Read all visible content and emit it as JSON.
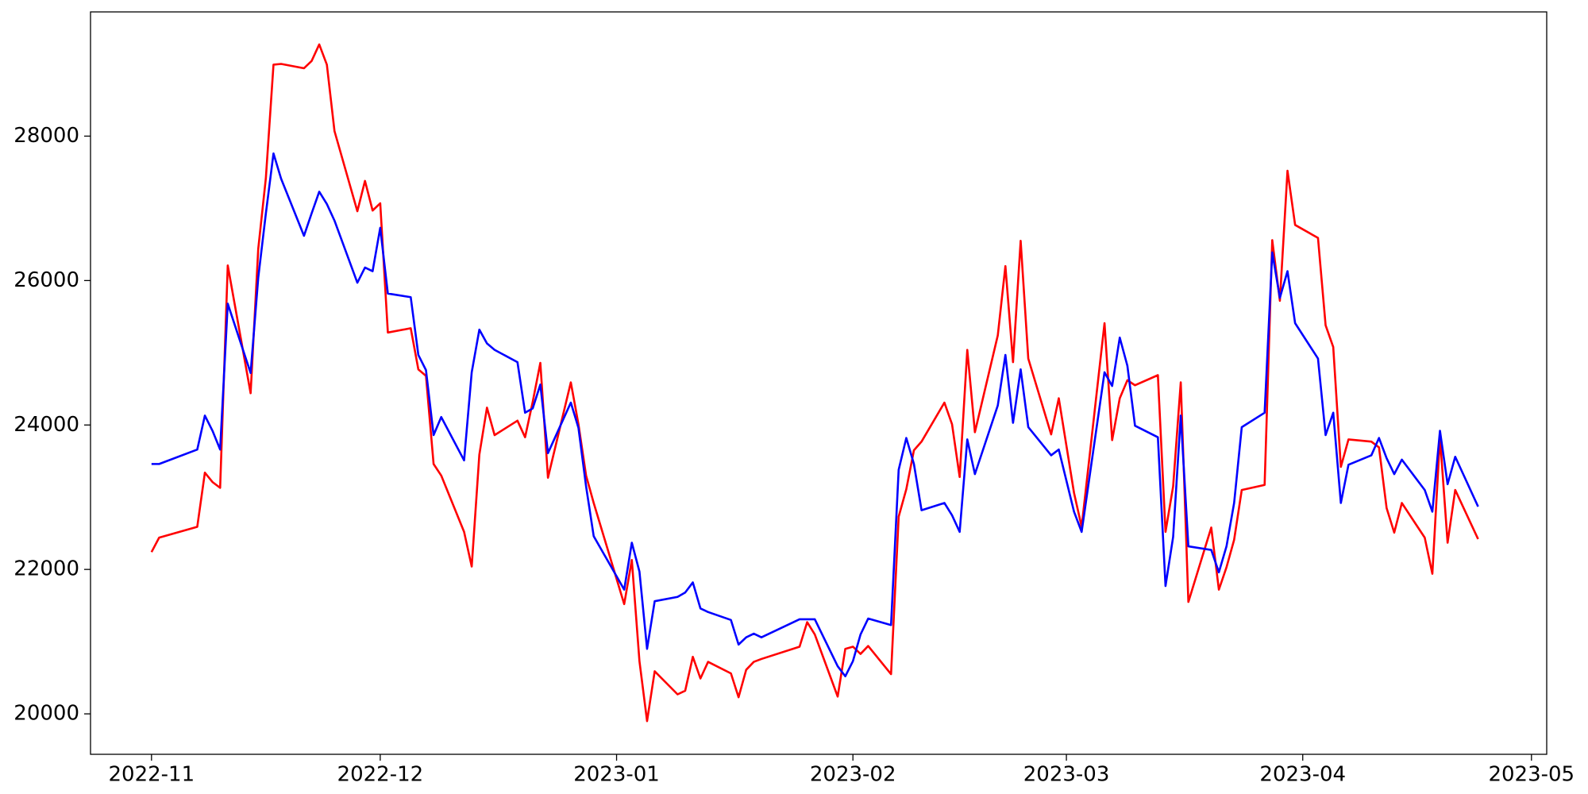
{
  "chart_data": {
    "type": "line",
    "x": [
      "2022-11-01",
      "2022-11-02",
      "2022-11-07",
      "2022-11-08",
      "2022-11-09",
      "2022-11-10",
      "2022-11-11",
      "2022-11-14",
      "2022-11-15",
      "2022-11-16",
      "2022-11-17",
      "2022-11-18",
      "2022-11-21",
      "2022-11-22",
      "2022-11-23",
      "2022-11-24",
      "2022-11-25",
      "2022-11-28",
      "2022-11-29",
      "2022-11-30",
      "2022-12-01",
      "2022-12-02",
      "2022-12-05",
      "2022-12-06",
      "2022-12-07",
      "2022-12-08",
      "2022-12-09",
      "2022-12-12",
      "2022-12-13",
      "2022-12-14",
      "2022-12-15",
      "2022-12-16",
      "2022-12-19",
      "2022-12-20",
      "2022-12-21",
      "2022-12-22",
      "2022-12-23",
      "2022-12-26",
      "2022-12-27",
      "2022-12-28",
      "2022-12-29",
      "2023-01-02",
      "2023-01-03",
      "2023-01-04",
      "2023-01-05",
      "2023-01-06",
      "2023-01-09",
      "2023-01-10",
      "2023-01-11",
      "2023-01-12",
      "2023-01-13",
      "2023-01-16",
      "2023-01-17",
      "2023-01-18",
      "2023-01-19",
      "2023-01-20",
      "2023-01-25",
      "2023-01-26",
      "2023-01-27",
      "2023-01-30",
      "2023-01-31",
      "2023-02-01",
      "2023-02-02",
      "2023-02-03",
      "2023-02-06",
      "2023-02-07",
      "2023-02-08",
      "2023-02-09",
      "2023-02-10",
      "2023-02-13",
      "2023-02-14",
      "2023-02-15",
      "2023-02-16",
      "2023-02-17",
      "2023-02-20",
      "2023-02-21",
      "2023-02-22",
      "2023-02-23",
      "2023-02-24",
      "2023-02-27",
      "2023-02-28",
      "2023-03-02",
      "2023-03-03",
      "2023-03-06",
      "2023-03-07",
      "2023-03-08",
      "2023-03-09",
      "2023-03-10",
      "2023-03-13",
      "2023-03-14",
      "2023-03-15",
      "2023-03-16",
      "2023-03-17",
      "2023-03-20",
      "2023-03-21",
      "2023-03-22",
      "2023-03-23",
      "2023-03-24",
      "2023-03-27",
      "2023-03-28",
      "2023-03-29",
      "2023-03-30",
      "2023-03-31",
      "2023-04-03",
      "2023-04-04",
      "2023-04-05",
      "2023-04-06",
      "2023-04-07",
      "2023-04-10",
      "2023-04-11",
      "2023-04-12",
      "2023-04-13",
      "2023-04-14",
      "2023-04-17",
      "2023-04-18",
      "2023-04-19",
      "2023-04-20",
      "2023-04-21",
      "2023-04-24"
    ],
    "series": [
      {
        "color": "#ff0000",
        "values": [
          22240,
          22440,
          22590,
          23340,
          23210,
          23130,
          26210,
          24440,
          26440,
          27420,
          28990,
          29000,
          28940,
          29040,
          29270,
          28990,
          28070,
          26960,
          27380,
          26970,
          27070,
          25280,
          25340,
          24770,
          24680,
          23460,
          23300,
          22520,
          22040,
          23590,
          24240,
          23860,
          24060,
          23830,
          24320,
          24860,
          23270,
          24590,
          24010,
          23300,
          22920,
          21520,
          22130,
          20730,
          19900,
          20590,
          20270,
          20320,
          20790,
          20490,
          20720,
          20560,
          20230,
          20610,
          20720,
          20760,
          20930,
          21270,
          21100,
          20240,
          20900,
          20930,
          20830,
          20940,
          20550,
          22730,
          23110,
          23650,
          23770,
          24310,
          24010,
          23280,
          25040,
          23900,
          25240,
          26200,
          24870,
          26550,
          24920,
          23870,
          24370,
          23060,
          22590,
          25410,
          23790,
          24370,
          24620,
          24550,
          24690,
          22520,
          23150,
          24590,
          21550,
          22580,
          21720,
          22030,
          22410,
          23100,
          23170,
          26560,
          25720,
          27520,
          26770,
          26590,
          25380,
          25080,
          23420,
          23800,
          23770,
          23690,
          22850,
          22510,
          22920,
          22440,
          21940,
          23830,
          22370,
          23100,
          22420
        ]
      },
      {
        "color": "#0000ff",
        "values": [
          23460,
          23460,
          23660,
          24130,
          23920,
          23660,
          25680,
          24720,
          26040,
          26930,
          27760,
          27410,
          26620,
          26930,
          27230,
          27060,
          26830,
          25970,
          26180,
          26130,
          26730,
          25820,
          25770,
          24970,
          24760,
          23860,
          24110,
          23510,
          24730,
          25320,
          25130,
          25040,
          24870,
          24170,
          24230,
          24560,
          23610,
          24310,
          23960,
          23150,
          22460,
          21720,
          22370,
          21970,
          20900,
          21560,
          21620,
          21680,
          21820,
          21460,
          21410,
          21300,
          20960,
          21060,
          21110,
          21060,
          21310,
          21310,
          21310,
          20660,
          20520,
          20730,
          21100,
          21320,
          21230,
          23380,
          23820,
          23460,
          22820,
          22920,
          22750,
          22520,
          23800,
          23320,
          24270,
          24970,
          24030,
          24770,
          23970,
          23580,
          23660,
          22800,
          22520,
          24730,
          24540,
          25210,
          24820,
          23990,
          23830,
          21770,
          22450,
          24130,
          22320,
          22270,
          21960,
          22320,
          22920,
          23970,
          24170,
          26390,
          25760,
          26130,
          25410,
          24920,
          23860,
          24170,
          22920,
          23450,
          23580,
          23820,
          23540,
          23320,
          23520,
          23100,
          22800,
          23920,
          23180,
          23560,
          22870
        ]
      }
    ],
    "xlim": [
      "2022-10-24",
      "2023-05-03"
    ],
    "xticks": [
      {
        "value": "2022-11-01",
        "label": "2022-11"
      },
      {
        "value": "2022-12-01",
        "label": "2022-12"
      },
      {
        "value": "2023-01-01",
        "label": "2023-01"
      },
      {
        "value": "2023-02-01",
        "label": "2023-02"
      },
      {
        "value": "2023-03-01",
        "label": "2023-03"
      },
      {
        "value": "2023-04-01",
        "label": "2023-04"
      },
      {
        "value": "2023-05-01",
        "label": "2023-05"
      }
    ],
    "ylim": [
      19440,
      29720
    ],
    "yticks": [
      20000,
      22000,
      24000,
      26000,
      28000
    ],
    "grid": false
  }
}
